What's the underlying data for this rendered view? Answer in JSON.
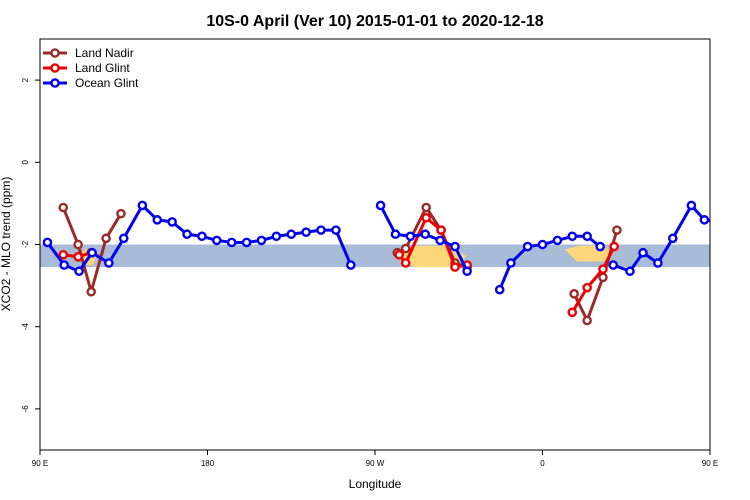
{
  "chart_data": {
    "type": "line",
    "title": "10S-0 April (Ver 10)   2015-01-01 to 2020-12-18",
    "xlabel": "Longitude",
    "ylabel": "XCO2 - MLO trend (ppm)",
    "xlim": [
      90,
      450
    ],
    "ylim": [
      -7,
      3
    ],
    "x_ticks": [
      {
        "value": 90,
        "label": "90 E"
      },
      {
        "value": 180,
        "label": "180"
      },
      {
        "value": 270,
        "label": "90 W"
      },
      {
        "value": 360,
        "label": "0"
      },
      {
        "value": 450,
        "label": "90 E"
      },
      {
        "value": 540,
        "label": "180"
      }
    ],
    "y_ticks": [
      {
        "value": -6,
        "label": "-6"
      },
      {
        "value": -4,
        "label": "-4"
      },
      {
        "value": -2,
        "label": "-2"
      },
      {
        "value": 0,
        "label": "0"
      },
      {
        "value": 2,
        "label": "2"
      }
    ],
    "background_band": {
      "ymin": -2.55,
      "ymax": -2.0,
      "color": "#a8bcd8",
      "land_color": "#fdd67a"
    },
    "legend": {
      "position": "top-left",
      "entries": [
        {
          "name": "Land Nadir",
          "color": "#9b2a2a"
        },
        {
          "name": "Land Glint",
          "color": "#ee0000"
        },
        {
          "name": "Ocean Glint",
          "color": "#0000ee"
        }
      ]
    },
    "series": [
      {
        "name": "Land Nadir",
        "color": "#9b2a2a",
        "segments": [
          [
            [
              102.5,
              -1.1
            ],
            [
              110.5,
              -2.0
            ],
            [
              117.5,
              -3.15
            ],
            [
              125.5,
              -1.85
            ],
            [
              133.5,
              -1.25
            ]
          ],
          [
            [
              282,
              -2.2
            ],
            [
              286.5,
              -2.1
            ],
            [
              297.5,
              -1.1
            ],
            [
              305.5,
              -1.65
            ],
            [
              313,
              -2.45
            ],
            [
              319.5,
              -2.55
            ]
          ],
          [
            [
              377,
              -3.2
            ],
            [
              384,
              -3.85
            ],
            [
              392.5,
              -2.8
            ],
            [
              400,
              -1.65
            ]
          ],
          [
            [
              462.5,
              -1.1
            ],
            [
              470.5,
              -2.0
            ],
            [
              477.5,
              -3.15
            ],
            [
              485.5,
              -1.85
            ],
            [
              493.5,
              -1.25
            ]
          ]
        ]
      },
      {
        "name": "Land Glint",
        "color": "#ee0000",
        "segments": [
          [
            [
              102.5,
              -2.25
            ],
            [
              110.5,
              -2.3
            ],
            [
              117.5,
              -2.2
            ]
          ],
          [
            [
              283,
              -2.25
            ],
            [
              286.5,
              -2.45
            ],
            [
              297.5,
              -1.35
            ],
            [
              305.5,
              -1.65
            ],
            [
              313,
              -2.55
            ],
            [
              319.5,
              -2.5
            ]
          ],
          [
            [
              376,
              -3.65
            ],
            [
              384,
              -3.05
            ],
            [
              392.5,
              -2.6
            ],
            [
              398.5,
              -2.05
            ]
          ],
          [
            [
              462.5,
              -2.25
            ],
            [
              470.5,
              -2.3
            ],
            [
              477.5,
              -2.2
            ]
          ]
        ]
      },
      {
        "name": "Ocean Glint",
        "color": "#0000ee",
        "segments": [
          [
            [
              94,
              -1.95
            ],
            [
              103,
              -2.5
            ],
            [
              111,
              -2.65
            ],
            [
              118,
              -2.2
            ],
            [
              127,
              -2.45
            ],
            [
              135,
              -1.85
            ],
            [
              145,
              -1.05
            ],
            [
              153,
              -1.4
            ],
            [
              161,
              -1.45
            ],
            [
              169,
              -1.75
            ],
            [
              177,
              -1.8
            ],
            [
              185,
              -1.9
            ],
            [
              193,
              -1.95
            ],
            [
              201,
              -1.95
            ],
            [
              209,
              -1.9
            ],
            [
              217,
              -1.8
            ],
            [
              225,
              -1.75
            ],
            [
              233,
              -1.7
            ],
            [
              241,
              -1.65
            ],
            [
              249,
              -1.65
            ],
            [
              257,
              -2.5
            ]
          ],
          [
            [
              273,
              -1.05
            ],
            [
              281,
              -1.75
            ],
            [
              289,
              -1.8
            ],
            [
              297,
              -1.75
            ],
            [
              305,
              -1.9
            ],
            [
              313,
              -2.05
            ],
            [
              319.5,
              -2.65
            ]
          ],
          [
            [
              337,
              -3.1
            ],
            [
              343,
              -2.45
            ],
            [
              352,
              -2.05
            ],
            [
              360,
              -2.0
            ],
            [
              368,
              -1.9
            ],
            [
              376,
              -1.8
            ],
            [
              384,
              -1.8
            ],
            [
              391,
              -2.05
            ]
          ],
          [
            [
              398,
              -2.5
            ],
            [
              407,
              -2.65
            ],
            [
              414,
              -2.2
            ],
            [
              422,
              -2.45
            ],
            [
              430,
              -1.85
            ],
            [
              440,
              -1.05
            ],
            [
              447,
              -1.4
            ],
            [
              455,
              -1.45
            ]
          ]
        ]
      }
    ]
  }
}
